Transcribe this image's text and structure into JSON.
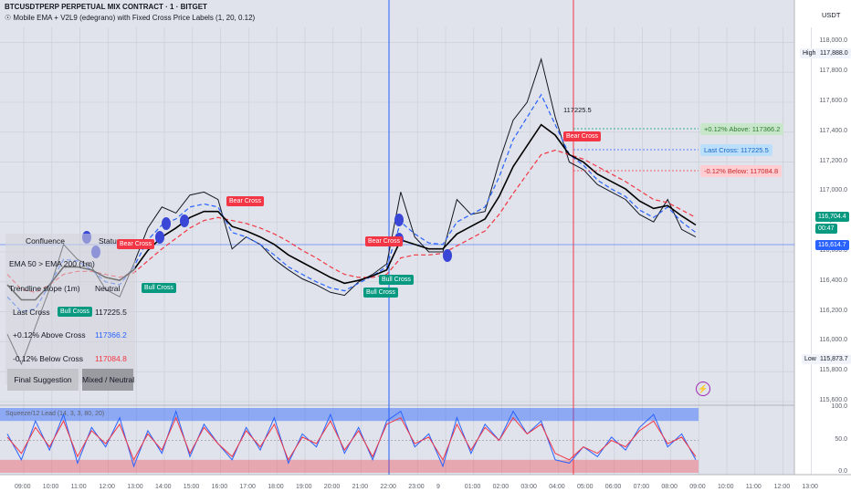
{
  "header": {
    "symbol_line": "BTCUSDTPERP PERPETUAL MIX CONTRACT · 1 · BITGET",
    "indicator_line": "☉ Mobile EMA + V2L9 (edegrano) with Fixed Cross Price Labels (1, 20, 0.12)"
  },
  "currency": "USDT",
  "axis": {
    "price_ticks": [
      "118,000.0",
      "117,800.0",
      "117,600.0",
      "117,400.0",
      "117,200.0",
      "117,000.0",
      "116,800.0",
      "116,600.0",
      "116,400.0",
      "116,200.0",
      "116,000.0",
      "115,800.0",
      "115,600.0"
    ],
    "osc_ticks": [
      "100.0",
      "50.0",
      "0.0"
    ],
    "time_ticks": [
      "09:00",
      "10:00",
      "11:00",
      "12:00",
      "13:00",
      "14:00",
      "15:00",
      "16:00",
      "17:00",
      "18:00",
      "19:00",
      "20:00",
      "21:00",
      "22:00",
      "23:00",
      "9",
      "01:00",
      "02:00",
      "03:00",
      "04:00",
      "05:00",
      "06:00",
      "07:00",
      "08:00",
      "09:00",
      "10:00",
      "11:00",
      "12:00",
      "13:00"
    ],
    "high_label": "High",
    "high_value": "117,888.0",
    "low_label": "Low",
    "low_value": "115,873.7",
    "last_price": "116,704.4",
    "countdown": "00:47",
    "cursor_price": "116,614.7"
  },
  "panel": {
    "title": "Confluence",
    "status_header": "Status",
    "rows": [
      {
        "label": "EMA 50 > EMA 200 (1m)",
        "value": ""
      },
      {
        "label": "Trendline slope (1m)",
        "value": "Neutral"
      },
      {
        "label": "Last Cross",
        "value": "117225.5"
      },
      {
        "label": "+0.12% Above Cross",
        "value": "117366.2"
      },
      {
        "label": "-0.12% Below Cross",
        "value": "117084.8"
      }
    ],
    "final_label": "Final Suggestion",
    "final_value": "Mixed / Neutral"
  },
  "price_labels": {
    "above": "+0.12% Above: 117366.2",
    "last": "Last Cross: 117225.5",
    "below": "-0.12% Below: 117084.8",
    "cross_value": "117225.5"
  },
  "cross_labels": {
    "bear": "Bear Cross",
    "bull": "Bull Cross"
  },
  "oscillator_title": "Squeeze/12 Lead (14, 3, 3, 80, 20)",
  "colors": {
    "price": "#131722",
    "ema_fast": "#2962ff",
    "ema_slow": "#f23645",
    "ema_mid": "#000000",
    "bull": "#089981",
    "bear": "#f23645",
    "osc_fast": "#2962ff",
    "osc_slow": "#f23645"
  },
  "chart_data": {
    "type": "line",
    "ylim": [
      115600,
      118100
    ],
    "x": [
      "09:00",
      "09:30",
      "10:00",
      "10:30",
      "11:00",
      "11:30",
      "12:00",
      "12:30",
      "13:00",
      "13:30",
      "14:00",
      "14:30",
      "15:00",
      "15:30",
      "16:00",
      "16:30",
      "17:00",
      "17:30",
      "18:00",
      "18:30",
      "19:00",
      "19:30",
      "20:00",
      "20:30",
      "21:00",
      "21:30",
      "22:00",
      "22:30",
      "23:00",
      "23:30",
      "00:00",
      "00:30",
      "01:00",
      "01:30",
      "02:00",
      "02:30",
      "03:00",
      "03:30",
      "04:00",
      "04:30",
      "05:00",
      "05:30",
      "06:00",
      "06:30",
      "07:00",
      "07:30",
      "08:00",
      "08:30",
      "09:00",
      "09:15"
    ],
    "series": [
      {
        "name": "price",
        "values": [
          116050,
          115850,
          116100,
          116350,
          116650,
          116550,
          116500,
          116350,
          116300,
          116520,
          116760,
          116900,
          116860,
          116980,
          117000,
          116950,
          116620,
          116700,
          116650,
          116550,
          116480,
          116420,
          116380,
          116330,
          116310,
          116400,
          116450,
          116520,
          117000,
          116700,
          116600,
          116600,
          116950,
          116850,
          116870,
          117200,
          117480,
          117600,
          117888,
          117500,
          117200,
          117150,
          117050,
          117000,
          116950,
          116850,
          116800,
          116950,
          116750,
          116700
        ]
      },
      {
        "name": "ema_fast",
        "values": [
          116300,
          116200,
          116220,
          116380,
          116550,
          116540,
          116480,
          116400,
          116380,
          116500,
          116680,
          116780,
          116820,
          116900,
          116920,
          116900,
          116730,
          116700,
          116650,
          116580,
          116500,
          116450,
          116400,
          116360,
          116340,
          116390,
          116440,
          116500,
          116800,
          116720,
          116660,
          116650,
          116800,
          116850,
          116900,
          117100,
          117350,
          117500,
          117650,
          117450,
          117250,
          117180,
          117080,
          117020,
          116970,
          116880,
          116830,
          116900,
          116800,
          116730
        ]
      },
      {
        "name": "ema_slow",
        "values": [
          116450,
          116350,
          116330,
          116380,
          116450,
          116470,
          116470,
          116450,
          116430,
          116460,
          116540,
          116620,
          116690,
          116760,
          116810,
          116830,
          116810,
          116790,
          116760,
          116720,
          116670,
          116610,
          116560,
          116500,
          116450,
          116430,
          116430,
          116450,
          116560,
          116580,
          116580,
          116590,
          116640,
          116690,
          116740,
          116850,
          116990,
          117120,
          117250,
          117280,
          117250,
          117220,
          117170,
          117120,
          117070,
          117010,
          116950,
          116930,
          116880,
          116830
        ]
      },
      {
        "name": "ema_mid",
        "values": [
          116380,
          116280,
          116280,
          116380,
          116500,
          116500,
          116480,
          116430,
          116410,
          116480,
          116610,
          116700,
          116760,
          116830,
          116870,
          116870,
          116770,
          116740,
          116700,
          116650,
          116580,
          116530,
          116480,
          116430,
          116390,
          116410,
          116440,
          116480,
          116680,
          116650,
          116620,
          116620,
          116720,
          116770,
          116820,
          116970,
          117170,
          117310,
          117450,
          117380,
          117250,
          117200,
          117120,
          117070,
          117020,
          116940,
          116890,
          116910,
          116840,
          116780
        ]
      }
    ],
    "osc": {
      "ylim": [
        0,
        100
      ],
      "fast": [
        60,
        20,
        80,
        35,
        90,
        15,
        70,
        40,
        85,
        10,
        65,
        30,
        95,
        25,
        75,
        45,
        20,
        70,
        35,
        85,
        15,
        60,
        40,
        90,
        30,
        70,
        20,
        80,
        95,
        40,
        60,
        10,
        85,
        30,
        75,
        50,
        95,
        60,
        80,
        20,
        15,
        40,
        25,
        55,
        35,
        70,
        90,
        40,
        60,
        20
      ],
      "slow": [
        55,
        30,
        70,
        40,
        80,
        25,
        65,
        45,
        75,
        20,
        60,
        35,
        85,
        30,
        70,
        45,
        25,
        65,
        40,
        75,
        20,
        55,
        45,
        80,
        35,
        65,
        25,
        75,
        85,
        45,
        55,
        20,
        75,
        35,
        70,
        50,
        85,
        60,
        75,
        30,
        20,
        40,
        30,
        50,
        40,
        65,
        80,
        45,
        55,
        25
      ]
    }
  }
}
